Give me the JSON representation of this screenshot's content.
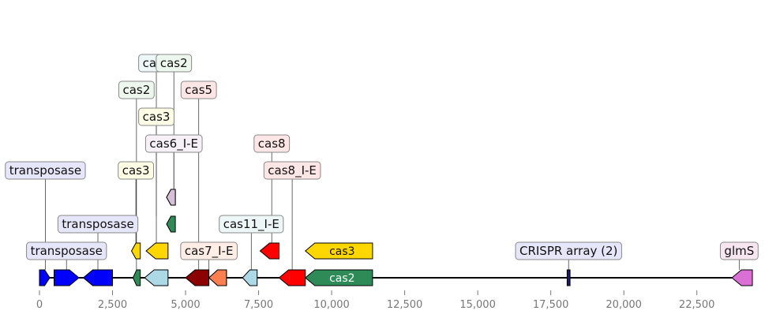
{
  "genes": [
    {
      "name": "",
      "start": 0,
      "end": 350,
      "strand": 1,
      "track": 0,
      "color": "#0000ff"
    },
    {
      "name": "transposase",
      "start": 500,
      "end": 1350,
      "strand": 1,
      "track": 0,
      "color": "#0000ff",
      "label_level": 0,
      "label_bg": "#e6e6fa"
    },
    {
      "name": "transposase",
      "start": 1500,
      "end": 2500,
      "strand": -1,
      "track": 0,
      "color": "#0000ff",
      "label_level": 1,
      "label_bg": "#e6e6fa",
      "label_at": 2000
    },
    {
      "name": "transposase",
      "start": 0,
      "end": 350,
      "strand": 1,
      "track": 0,
      "color": "#0000ff",
      "label_level": 3,
      "label_bg": "#e6e6fa",
      "label_at": 200
    },
    {
      "name": "cas2",
      "start": 3200,
      "end": 3450,
      "strand": -1,
      "track": 0,
      "color": "#2e8b57",
      "label_level": 6,
      "label_bg": "#eef7ee",
      "label_at": 3320
    },
    {
      "name": "cas3",
      "start": 3150,
      "end": 3450,
      "strand": -1,
      "track": 1,
      "color": "#ffd700",
      "label_level": 3,
      "label_bg": "#fffde6",
      "label_at": 3300
    },
    {
      "name": "",
      "start": 3600,
      "end": 4400,
      "strand": -1,
      "track": 0,
      "color": "#add8e6"
    },
    {
      "name": "cas3",
      "start": 3650,
      "end": 4400,
      "strand": -1,
      "track": 1,
      "color": "#ffd700",
      "label_level": 5,
      "label_bg": "#fffde6",
      "label_at": 4000
    },
    {
      "name": "cas1",
      "start": 4350,
      "end": 4650,
      "strand": -1,
      "track": 2,
      "color": "#2e8b57",
      "label_level": 7,
      "label_bg": "#eef7f7",
      "label_at": 4000
    },
    {
      "name": "cas6_I-E",
      "start": 4350,
      "end": 4650,
      "strand": -1,
      "track": 3,
      "color": "#d8bfd8",
      "label_level": 4,
      "label_bg": "#f7f0f7",
      "label_at": 4600
    },
    {
      "name": "cas2",
      "start": 4350,
      "end": 4650,
      "strand": -1,
      "track": 3,
      "color": "#d8bfd8",
      "label_level": 8,
      "label_bg": "#eef7ee",
      "label_at": 4600
    },
    {
      "name": "",
      "start": 5000,
      "end": 5800,
      "strand": -1,
      "track": 0,
      "color": "#8b0000"
    },
    {
      "name": "cas5",
      "start": 5800,
      "end": 6400,
      "strand": -1,
      "track": 0,
      "color": "#ff7f50",
      "label_level": 6,
      "label_bg": "#ffe6e6",
      "label_at": 5450
    },
    {
      "name": "cas7_I-E",
      "start": 5800,
      "end": 6400,
      "strand": -1,
      "track": 0,
      "color": "#ff7f50",
      "label_level": 0,
      "label_bg": "#ffede6",
      "label_at": 5800
    },
    {
      "name": "cas11_I-E",
      "start": 6950,
      "end": 7450,
      "strand": -1,
      "track": 0,
      "color": "#add8e6",
      "label_level": 1,
      "label_bg": "#eef7f7",
      "label_at": 7250
    },
    {
      "name": "cas8",
      "start": 7550,
      "end": 8200,
      "strand": -1,
      "track": 1,
      "color": "#ff0000",
      "label_level": 4,
      "label_bg": "#ffe6e6",
      "label_at": 7950
    },
    {
      "name": "cas8_I-E",
      "start": 8200,
      "end": 9100,
      "strand": -1,
      "track": 0,
      "color": "#ff0000",
      "label_level": 3,
      "label_bg": "#ffe6e6",
      "label_at": 8650
    },
    {
      "name": "cas3",
      "start": 9100,
      "end": 11400,
      "strand": -1,
      "track": 1,
      "color": "#ffd700",
      "inner": true
    },
    {
      "name": "cas2",
      "start": 9100,
      "end": 11400,
      "strand": -1,
      "track": 0,
      "color": "#2e8b57",
      "inner": true,
      "inner_color": "#ffffff"
    },
    {
      "name": "CRISPR array (2)",
      "start": 18060,
      "end": 18160,
      "strand": 0,
      "track": 0,
      "color": "#191970",
      "label_level": 0,
      "label_bg": "#e6e6fa",
      "label_at": 18110
    },
    {
      "name": "glmS",
      "start": 23700,
      "end": 24400,
      "strand": -1,
      "track": 0,
      "color": "#da70d6",
      "label_level": 0,
      "label_bg": "#f7e6f0",
      "label_at": 23950
    }
  ],
  "axis": {
    "ticks": [
      0,
      2500,
      5000,
      7500,
      10000,
      12500,
      15000,
      17500,
      20000,
      22500
    ],
    "tick_labels": [
      "0",
      "2,500",
      "5,000",
      "7,500",
      "10,000",
      "12,500",
      "15,000",
      "17,500",
      "20,000",
      "22,500"
    ],
    "min": 0,
    "max": 24400
  }
}
